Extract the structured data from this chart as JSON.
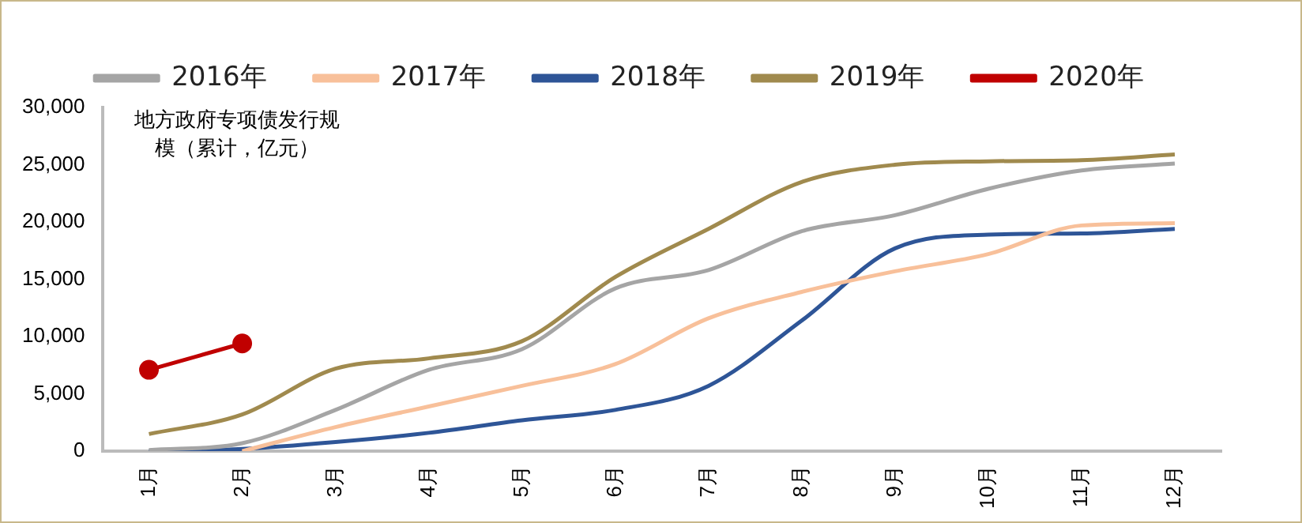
{
  "chart_data": {
    "type": "line",
    "ylabel": "地方政府专项债发行规模（累计，亿元）",
    "categories": [
      "1月",
      "2月",
      "3月",
      "4月",
      "5月",
      "6月",
      "7月",
      "8月",
      "9月",
      "10月",
      "11月",
      "12月"
    ],
    "series": [
      {
        "name": "2016年",
        "color": "#a5a5a5",
        "marker": "none",
        "values": [
          100,
          700,
          3600,
          7100,
          8900,
          14200,
          15800,
          19200,
          20600,
          22900,
          24500,
          25100
        ]
      },
      {
        "name": "2017年",
        "color": "#f8c09a",
        "marker": "none",
        "values": [
          null,
          0,
          2100,
          3900,
          5700,
          7600,
          11600,
          13900,
          15700,
          17200,
          19700,
          19900
        ]
      },
      {
        "name": "2018年",
        "color": "#2e5597",
        "marker": "none",
        "values": [
          0,
          200,
          800,
          1600,
          2700,
          3600,
          5700,
          11400,
          17700,
          18900,
          19000,
          19400
        ]
      },
      {
        "name": "2019年",
        "color": "#a08a4e",
        "marker": "none",
        "values": [
          1500,
          3200,
          7200,
          8100,
          9600,
          15200,
          19400,
          23500,
          25000,
          25300,
          25400,
          25900
        ]
      },
      {
        "name": "2020年",
        "color": "#c00000",
        "marker": "circle",
        "values": [
          7100,
          9400,
          null,
          null,
          null,
          null,
          null,
          null,
          null,
          null,
          null,
          null
        ]
      }
    ],
    "ylim": [
      0,
      30000
    ],
    "yticks": [
      {
        "value": 0,
        "label": "0"
      },
      {
        "value": 5000,
        "label": "5,000"
      },
      {
        "value": 10000,
        "label": "10,000"
      },
      {
        "value": 15000,
        "label": "15,000"
      },
      {
        "value": 20000,
        "label": "20,000"
      },
      {
        "value": 25000,
        "label": "25,000"
      },
      {
        "value": 30000,
        "label": "30,000"
      }
    ],
    "grid": false,
    "legend": "top",
    "line_style": "solid"
  }
}
